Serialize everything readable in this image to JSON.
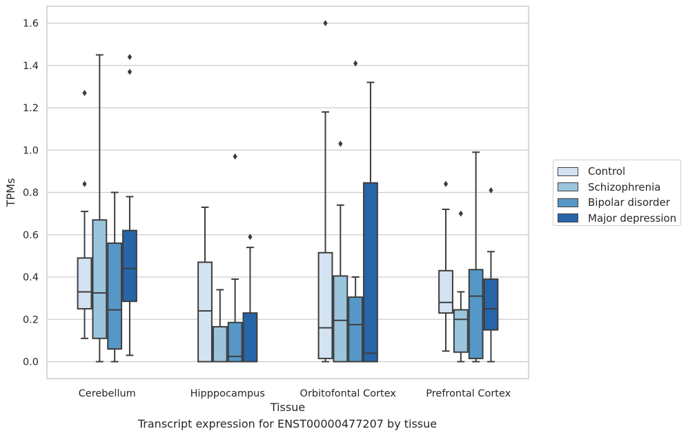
{
  "chart_data": {
    "type": "boxplot",
    "caption": "Transcript expression for ENST00000477207 by tissue",
    "xlabel": "Tissue",
    "ylabel": "TPMs",
    "ylim": [
      -0.08,
      1.68
    ],
    "yticks": [
      0.0,
      0.2,
      0.4,
      0.6,
      0.8,
      1.0,
      1.2,
      1.4,
      1.6
    ],
    "ytick_labels": [
      "0.0",
      "0.2",
      "0.4",
      "0.6",
      "0.8",
      "1.0",
      "1.2",
      "1.4",
      "1.6"
    ],
    "grid": true,
    "legend_position": "right",
    "categories": [
      "Cerebellum",
      "Hipppocampus",
      "Orbitofontal Cortex",
      "Prefrontal Cortex"
    ],
    "series": [
      {
        "name": "Control",
        "color": "#d3e3f2",
        "boxes": [
          {
            "whislo": 0.11,
            "q1": 0.25,
            "med": 0.33,
            "q3": 0.49,
            "whishi": 0.71,
            "fliers": [
              0.84,
              1.27
            ]
          },
          {
            "whislo": 0.0,
            "q1": 0.0,
            "med": 0.24,
            "q3": 0.47,
            "whishi": 0.73,
            "fliers": []
          },
          {
            "whislo": 0.0,
            "q1": 0.015,
            "med": 0.16,
            "q3": 0.515,
            "whishi": 1.18,
            "fliers": [
              1.6
            ]
          },
          {
            "whislo": 0.05,
            "q1": 0.23,
            "med": 0.28,
            "q3": 0.43,
            "whishi": 0.72,
            "fliers": [
              0.84
            ]
          }
        ]
      },
      {
        "name": "Schizophrenia",
        "color": "#9ac5dd",
        "boxes": [
          {
            "whislo": 0.0,
            "q1": 0.11,
            "med": 0.325,
            "q3": 0.67,
            "whishi": 1.45,
            "fliers": []
          },
          {
            "whislo": 0.0,
            "q1": 0.0,
            "med": 0.0,
            "q3": 0.165,
            "whishi": 0.34,
            "fliers": []
          },
          {
            "whislo": 0.0,
            "q1": 0.0,
            "med": 0.195,
            "q3": 0.405,
            "whishi": 0.74,
            "fliers": [
              1.03
            ]
          },
          {
            "whislo": 0.0,
            "q1": 0.045,
            "med": 0.2,
            "q3": 0.245,
            "whishi": 0.33,
            "fliers": [
              0.7
            ]
          }
        ]
      },
      {
        "name": "Bipolar disorder",
        "color": "#5598c8",
        "boxes": [
          {
            "whislo": 0.0,
            "q1": 0.06,
            "med": 0.245,
            "q3": 0.56,
            "whishi": 0.8,
            "fliers": []
          },
          {
            "whislo": 0.0,
            "q1": 0.0,
            "med": 0.025,
            "q3": 0.185,
            "whishi": 0.39,
            "fliers": [
              0.97
            ]
          },
          {
            "whislo": 0.0,
            "q1": 0.0,
            "med": 0.175,
            "q3": 0.305,
            "whishi": 0.4,
            "fliers": [
              1.41
            ]
          },
          {
            "whislo": 0.0,
            "q1": 0.015,
            "med": 0.31,
            "q3": 0.435,
            "whishi": 0.99,
            "fliers": []
          }
        ]
      },
      {
        "name": "Major depression",
        "color": "#2666a8",
        "boxes": [
          {
            "whislo": 0.03,
            "q1": 0.285,
            "med": 0.44,
            "q3": 0.62,
            "whishi": 0.78,
            "fliers": [
              1.37,
              1.44
            ]
          },
          {
            "whislo": 0.0,
            "q1": 0.0,
            "med": 0.0,
            "q3": 0.23,
            "whishi": 0.54,
            "fliers": [
              0.59
            ]
          },
          {
            "whislo": 0.0,
            "q1": 0.0,
            "med": 0.04,
            "q3": 0.845,
            "whishi": 1.32,
            "fliers": []
          },
          {
            "whislo": 0.0,
            "q1": 0.15,
            "med": 0.25,
            "q3": 0.39,
            "whishi": 0.52,
            "fliers": [
              0.81
            ]
          }
        ]
      }
    ]
  }
}
